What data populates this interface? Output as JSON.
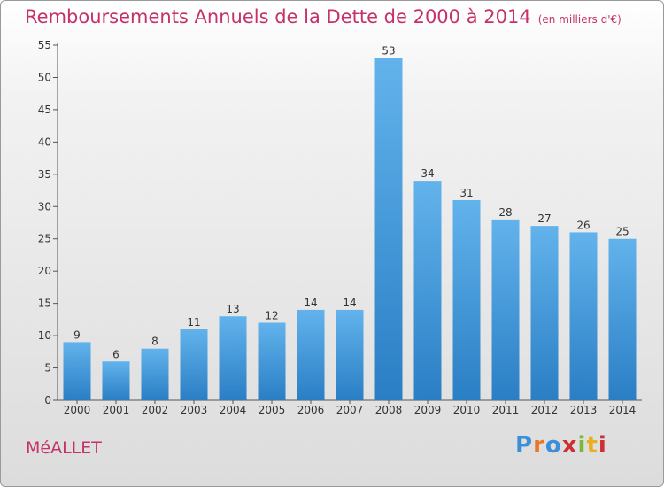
{
  "title": "Remboursements Annuels de la Dette de 2000 à 2014",
  "unit": "(en milliers d'€)",
  "commune": "MéALLET",
  "logo": {
    "text": "Proxiti",
    "colors": [
      "#3a8fd8",
      "#e8772a",
      "#3a8fd8",
      "#cc3030",
      "#7ab83a",
      "#e8b01e",
      "#cc3030"
    ]
  },
  "colors": {
    "bar_top": "#62b3ec",
    "bar_bottom": "#2a7ec4",
    "accent": "#c5316a"
  },
  "chart_data": {
    "type": "bar",
    "categories": [
      "2000",
      "2001",
      "2002",
      "2003",
      "2004",
      "2005",
      "2006",
      "2007",
      "2008",
      "2009",
      "2010",
      "2011",
      "2012",
      "2013",
      "2014"
    ],
    "values": [
      9,
      6,
      8,
      11,
      13,
      12,
      14,
      14,
      53,
      34,
      31,
      28,
      27,
      26,
      25
    ],
    "ylim": [
      0,
      55
    ],
    "yticks": [
      0,
      5,
      10,
      15,
      20,
      25,
      30,
      35,
      40,
      45,
      50,
      55
    ],
    "grid": false,
    "legend": "none"
  }
}
